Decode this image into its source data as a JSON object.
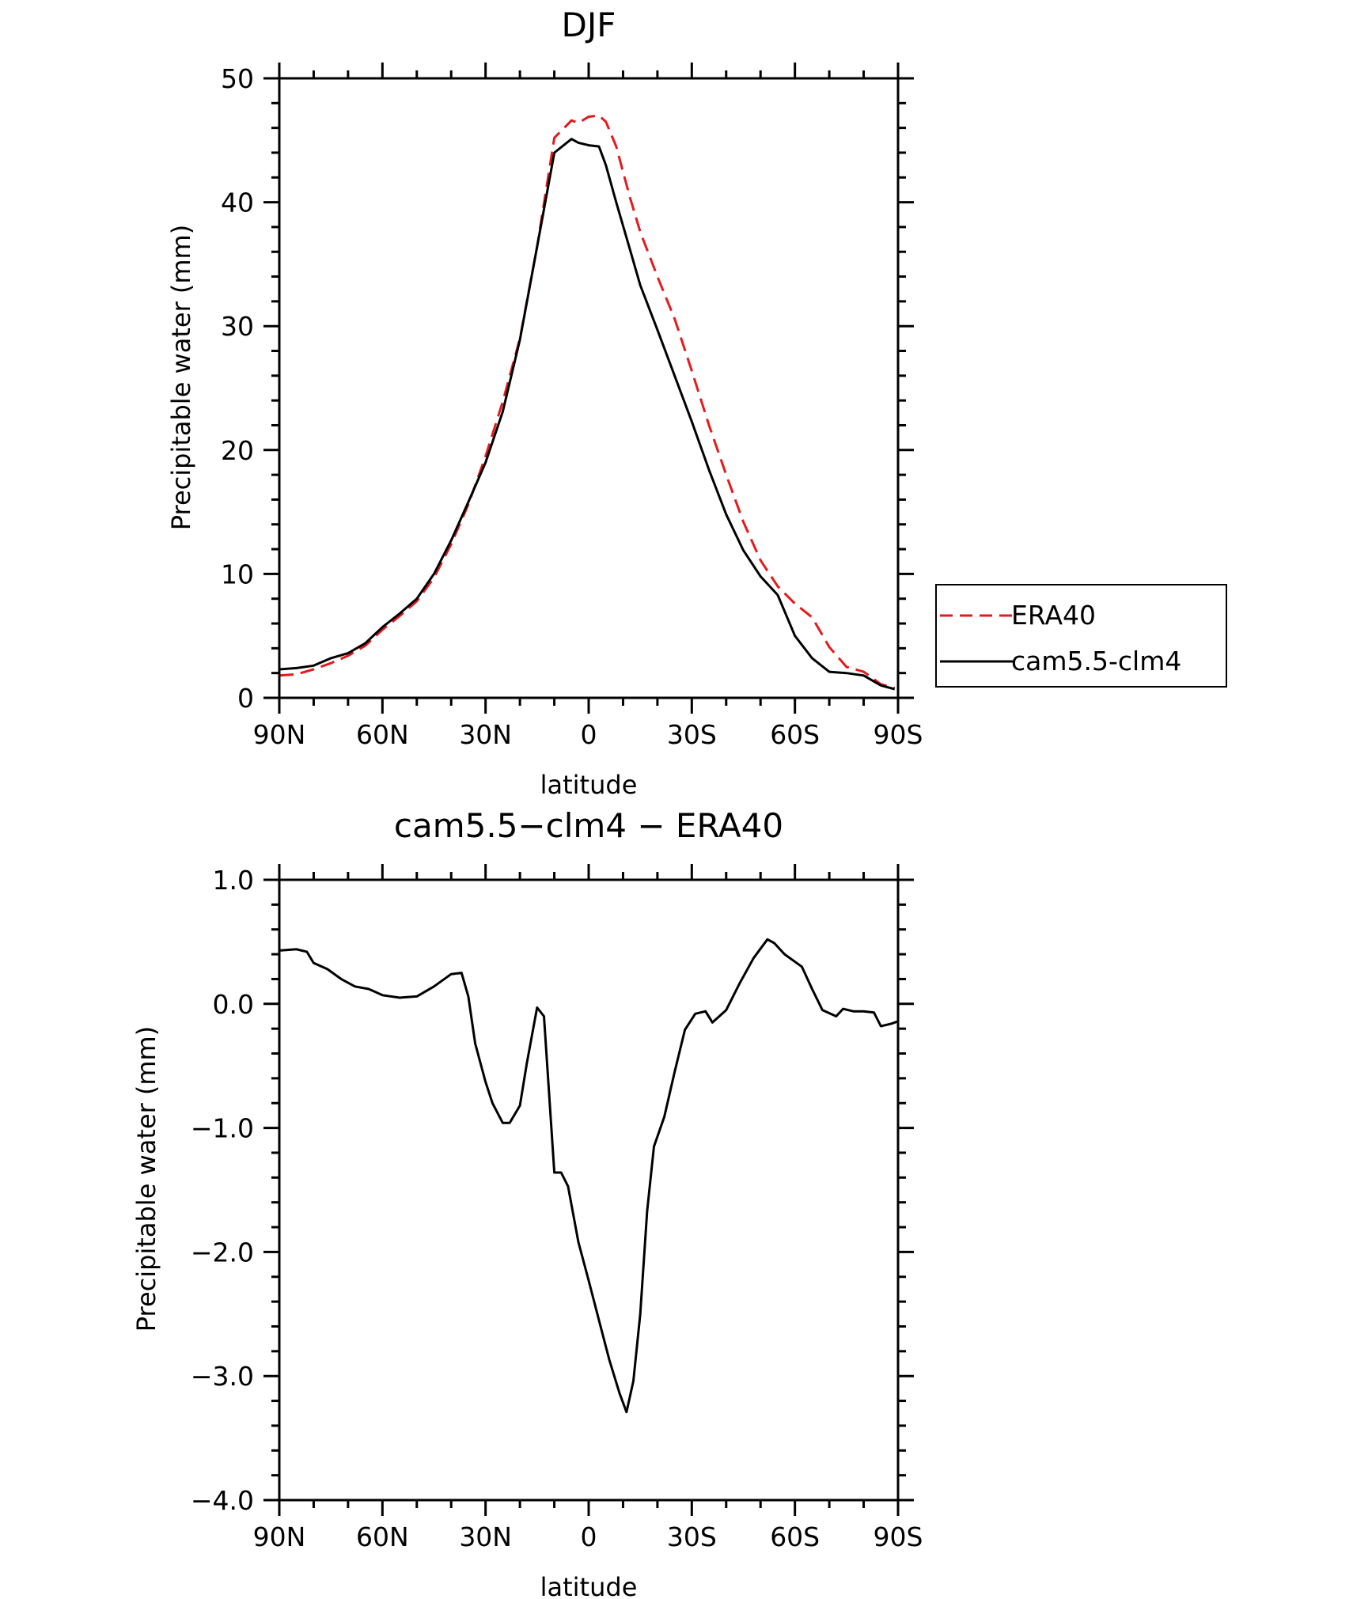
{
  "chart_data": [
    {
      "type": "line",
      "title": "DJF",
      "xlabel": "latitude",
      "ylabel": "Precipitable water (mm)",
      "xlim": [
        90,
        -90
      ],
      "ylim": [
        0,
        50
      ],
      "x_ticks": [
        90,
        60,
        30,
        0,
        -30,
        -60,
        -90
      ],
      "x_tick_labels": [
        "90N",
        "60N",
        "30N",
        "0",
        "30S",
        "60S",
        "90S"
      ],
      "y_ticks": [
        0,
        10,
        20,
        30,
        40,
        50
      ],
      "y_tick_labels": [
        "0",
        "10",
        "20",
        "30",
        "40",
        "50"
      ],
      "legend_position": "right",
      "series": [
        {
          "name": "ERA40",
          "color": "#e41a1c",
          "dash": "dashed",
          "x": [
            90,
            85,
            80,
            75,
            70,
            65,
            60,
            55,
            50,
            45,
            40,
            35,
            30,
            25,
            20,
            15,
            10,
            5,
            3,
            0,
            -3,
            -5,
            -8,
            -12,
            -15,
            -20,
            -25,
            -30,
            -35,
            -40,
            -45,
            -50,
            -55,
            -60,
            -65,
            -70,
            -75,
            -80,
            -85,
            -89
          ],
          "y": [
            1.8,
            1.9,
            2.3,
            2.8,
            3.4,
            4.2,
            5.5,
            6.6,
            7.8,
            9.7,
            12.4,
            15.6,
            19.5,
            23.9,
            29.0,
            36.4,
            45.2,
            46.6,
            46.4,
            46.9,
            47.0,
            46.5,
            44.5,
            40.4,
            37.6,
            34.0,
            30.6,
            26.4,
            22.0,
            18.0,
            14.2,
            11.1,
            9.0,
            7.6,
            6.5,
            4.1,
            2.5,
            2.1,
            1.1,
            0.8
          ]
        },
        {
          "name": "cam5.5-clm4",
          "color": "#000000",
          "dash": "solid",
          "x": [
            90,
            85,
            80,
            75,
            70,
            65,
            60,
            55,
            50,
            45,
            40,
            35,
            30,
            25,
            20,
            15,
            10,
            5,
            3,
            0,
            -3,
            -5,
            -8,
            -12,
            -15,
            -20,
            -25,
            -30,
            -35,
            -40,
            -45,
            -50,
            -55,
            -60,
            -65,
            -70,
            -75,
            -80,
            -85,
            -89
          ],
          "y": [
            2.3,
            2.4,
            2.6,
            3.2,
            3.6,
            4.4,
            5.7,
            6.8,
            8.0,
            10.0,
            12.7,
            15.8,
            19.0,
            23.1,
            28.9,
            36.4,
            44.0,
            45.1,
            44.8,
            44.6,
            44.5,
            43.0,
            40.0,
            36.2,
            33.3,
            29.7,
            26.0,
            22.3,
            18.4,
            14.8,
            11.9,
            9.8,
            8.3,
            5.0,
            3.2,
            2.1,
            2.0,
            1.8,
            1.0,
            0.7
          ]
        }
      ]
    },
    {
      "type": "line",
      "title": "cam5.5−clm4 − ERA40",
      "xlabel": "latitude",
      "ylabel": "Precipitable water (mm)",
      "xlim": [
        90,
        -90
      ],
      "ylim": [
        -4.0,
        1.0
      ],
      "x_ticks": [
        90,
        60,
        30,
        0,
        -30,
        -60,
        -90
      ],
      "x_tick_labels": [
        "90N",
        "60N",
        "30N",
        "0",
        "30S",
        "60S",
        "90S"
      ],
      "y_ticks": [
        1.0,
        0.0,
        -1.0,
        -2.0,
        -3.0,
        -4.0
      ],
      "y_tick_labels": [
        "1.0",
        "0.0",
        "−1.0",
        "−2.0",
        "−3.0",
        "−4.0"
      ],
      "series": [
        {
          "color": "#000000",
          "dash": "solid",
          "x": [
            90,
            85,
            82,
            80,
            76,
            72,
            68,
            64,
            60,
            55,
            50,
            45,
            40,
            37,
            35,
            33,
            30,
            28,
            25,
            23,
            20,
            18,
            15,
            13,
            10,
            8,
            6,
            3,
            0,
            -3,
            -6,
            -9,
            -11,
            -13,
            -15,
            -17,
            -19,
            -22,
            -25,
            -28,
            -31,
            -34,
            -36,
            -38,
            -40,
            -44,
            -48,
            -52,
            -54,
            -57,
            -62,
            -65,
            -68,
            -72,
            -74,
            -77,
            -80,
            -83,
            -85,
            -88,
            -90
          ],
          "y": [
            0.43,
            0.44,
            0.42,
            0.33,
            0.28,
            0.2,
            0.14,
            0.12,
            0.07,
            0.05,
            0.06,
            0.14,
            0.24,
            0.25,
            0.06,
            -0.32,
            -0.63,
            -0.8,
            -0.96,
            -0.96,
            -0.82,
            -0.48,
            -0.03,
            -0.1,
            -1.36,
            -1.36,
            -1.47,
            -1.92,
            -2.23,
            -2.55,
            -2.87,
            -3.14,
            -3.29,
            -3.04,
            -2.5,
            -1.67,
            -1.15,
            -0.91,
            -0.55,
            -0.21,
            -0.08,
            -0.06,
            -0.15,
            -0.1,
            -0.05,
            0.17,
            0.37,
            0.52,
            0.49,
            0.4,
            0.3,
            0.12,
            -0.05,
            -0.1,
            -0.04,
            -0.06,
            -0.06,
            -0.07,
            -0.18,
            -0.16,
            -0.14
          ]
        }
      ]
    }
  ]
}
